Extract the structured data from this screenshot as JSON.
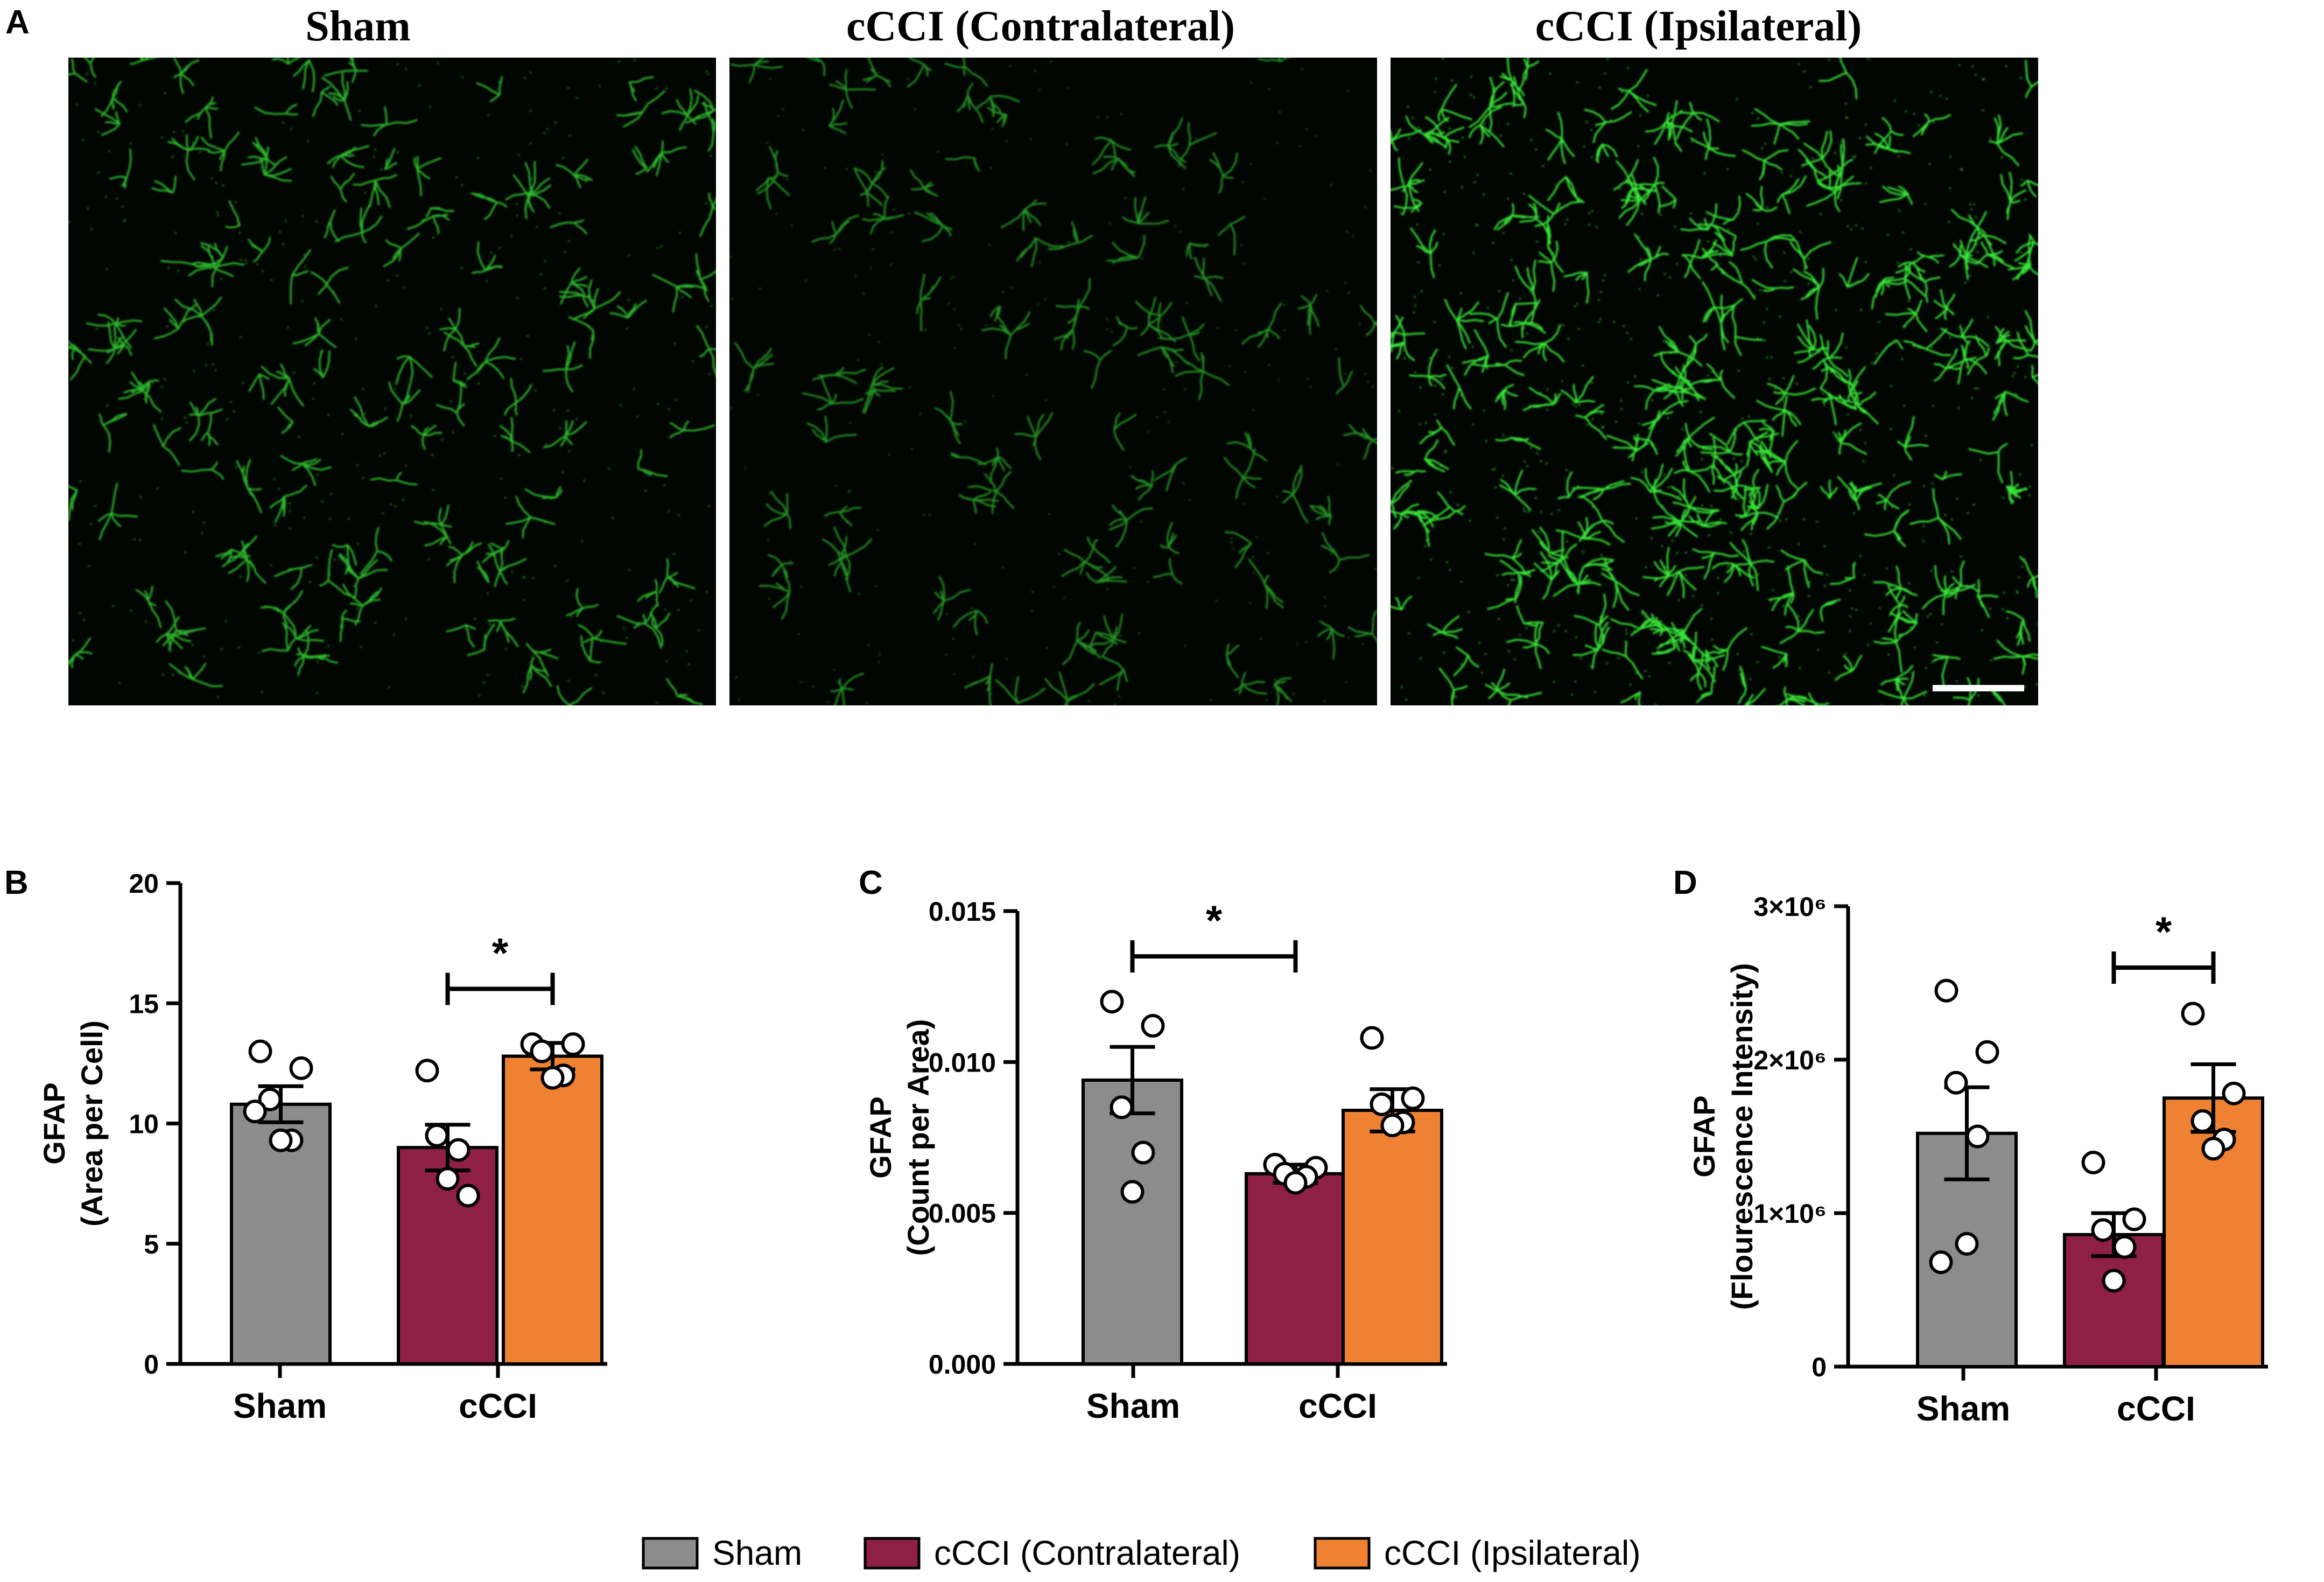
{
  "figure": {
    "panel_A_letter": "A",
    "micrographs": [
      {
        "title": "Sham",
        "signal_density": 0.55,
        "brightness": 0.8
      },
      {
        "title": "cCCI (Contralateral)",
        "signal_density": 0.38,
        "brightness": 0.62
      },
      {
        "title": "cCCI (Ipsilateral)",
        "signal_density": 0.95,
        "brightness": 1.0
      }
    ],
    "micrograph_color": "#39e639",
    "scale_bar": true
  },
  "colors": {
    "Sham": "#8c8c8c",
    "cCCI (Contralateral)": "#8e1f45",
    "cCCI (Ipsilateral)": "#ee8232"
  },
  "legend": {
    "items": [
      "Sham",
      "cCCI (Contralateral)",
      "cCCI (Ipsilateral)"
    ],
    "position": "bottom-center"
  },
  "chart_data": [
    {
      "panel": "B",
      "type": "bar",
      "ylabel_line1": "GFAP",
      "ylabel_line2": "(Area per Cell)",
      "ylim": [
        0,
        20
      ],
      "yticks": [
        0,
        5,
        10,
        15,
        20
      ],
      "ytick_labels": [
        "0",
        "5",
        "10",
        "15",
        "20"
      ],
      "group_labels": [
        "Sham",
        "cCCI"
      ],
      "bars": [
        {
          "series": "Sham",
          "group": 0,
          "mean": 10.8,
          "sem": 0.75,
          "points": [
            13.0,
            12.3,
            11.0,
            9.3,
            9.3,
            10.5
          ]
        },
        {
          "series": "cCCI (Contralateral)",
          "group": 1,
          "mean": 9.0,
          "sem": 0.95,
          "points": [
            12.2,
            7.0,
            9.5,
            8.9,
            7.7
          ]
        },
        {
          "series": "cCCI (Ipsilateral)",
          "group": 1,
          "mean": 12.8,
          "sem": 0.55,
          "points": [
            13.3,
            13.3,
            13.0,
            12.0,
            11.9
          ]
        }
      ],
      "significance": [
        {
          "from": 1,
          "to": 2,
          "y": 15.6,
          "label": "*"
        }
      ]
    },
    {
      "panel": "C",
      "type": "bar",
      "ylabel_line1": "GFAP",
      "ylabel_line2": "(Count per Area)",
      "ylim": [
        0,
        0.015
      ],
      "yticks": [
        0,
        0.005,
        0.01,
        0.015
      ],
      "ytick_labels": [
        "0.000",
        "0.005",
        "0.010",
        "0.015"
      ],
      "group_labels": [
        "Sham",
        "cCCI"
      ],
      "bars": [
        {
          "series": "Sham",
          "group": 0,
          "mean": 0.0094,
          "sem": 0.0011,
          "points": [
            0.012,
            0.0112,
            0.0085,
            0.007,
            0.0057
          ]
        },
        {
          "series": "cCCI (Contralateral)",
          "group": 1,
          "mean": 0.0063,
          "sem": 0.0003,
          "points": [
            0.0066,
            0.0065,
            0.0063,
            0.0062,
            0.006
          ]
        },
        {
          "series": "cCCI (Ipsilateral)",
          "group": 1,
          "mean": 0.0084,
          "sem": 0.0007,
          "points": [
            0.0108,
            0.0088,
            0.0086,
            0.008,
            0.0079
          ]
        }
      ],
      "significance": [
        {
          "from": 0,
          "to": 1,
          "y": 0.0135,
          "label": "*"
        }
      ]
    },
    {
      "panel": "D",
      "type": "bar",
      "ylabel_line1": "GFAP",
      "ylabel_line2": "(Flourescence Intensity)",
      "ylim": [
        0,
        3000000
      ],
      "yticks": [
        0,
        1000000,
        2000000,
        3000000
      ],
      "ytick_labels": [
        "0",
        "1×10⁶",
        "2×10⁶",
        "3×10⁶"
      ],
      "group_labels": [
        "Sham",
        "cCCI"
      ],
      "bars": [
        {
          "series": "Sham",
          "group": 0,
          "mean": 1520000,
          "sem": 300000,
          "points": [
            2450000,
            2050000,
            1850000,
            1500000,
            800000,
            680000
          ]
        },
        {
          "series": "cCCI (Contralateral)",
          "group": 1,
          "mean": 860000,
          "sem": 140000,
          "points": [
            1330000,
            960000,
            890000,
            780000,
            560000
          ]
        },
        {
          "series": "cCCI (Ipsilateral)",
          "group": 1,
          "mean": 1750000,
          "sem": 220000,
          "points": [
            2300000,
            1780000,
            1600000,
            1480000,
            1420000
          ]
        }
      ],
      "significance": [
        {
          "from": 1,
          "to": 2,
          "y": 2600000,
          "label": "*"
        }
      ]
    }
  ]
}
